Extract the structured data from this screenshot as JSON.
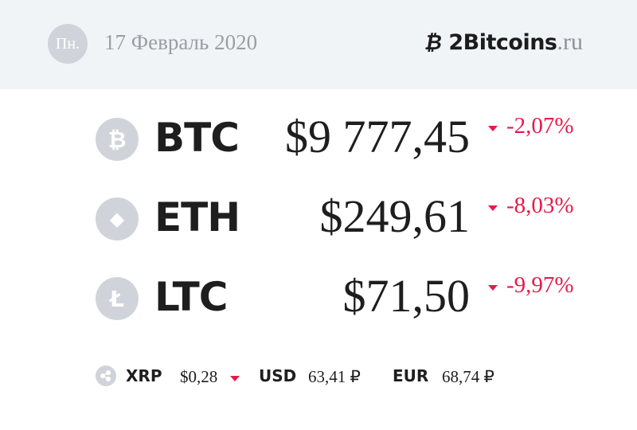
{
  "header": {
    "weekday": "Пн.",
    "date": "17 Февраль 2020",
    "logo_symbol": "₿",
    "logo_name": "2Bitcoins",
    "logo_tld": ".ru"
  },
  "colors": {
    "header_bg": "#f1f4f7",
    "negative": "#e8194a",
    "icon_bg": "#d0d4da"
  },
  "coins": [
    {
      "ticker": "BTC",
      "icon": "bitcoin-icon",
      "glyph": "₿",
      "price": "$9 777,45",
      "change": "-2,07%",
      "direction": "down"
    },
    {
      "ticker": "ETH",
      "icon": "ethereum-icon",
      "glyph": "◆",
      "price": "$249,61",
      "change": "-8,03%",
      "direction": "down"
    },
    {
      "ticker": "LTC",
      "icon": "litecoin-icon",
      "glyph": "Ł",
      "price": "$71,50",
      "change": "-9,97%",
      "direction": "down"
    }
  ],
  "bottom": {
    "xrp": {
      "ticker": "XRP",
      "price": "$0,28",
      "direction": "down"
    },
    "usd": {
      "label": "USD",
      "value": "63,41 ₽"
    },
    "eur": {
      "label": "EUR",
      "value": "68,74 ₽"
    }
  }
}
